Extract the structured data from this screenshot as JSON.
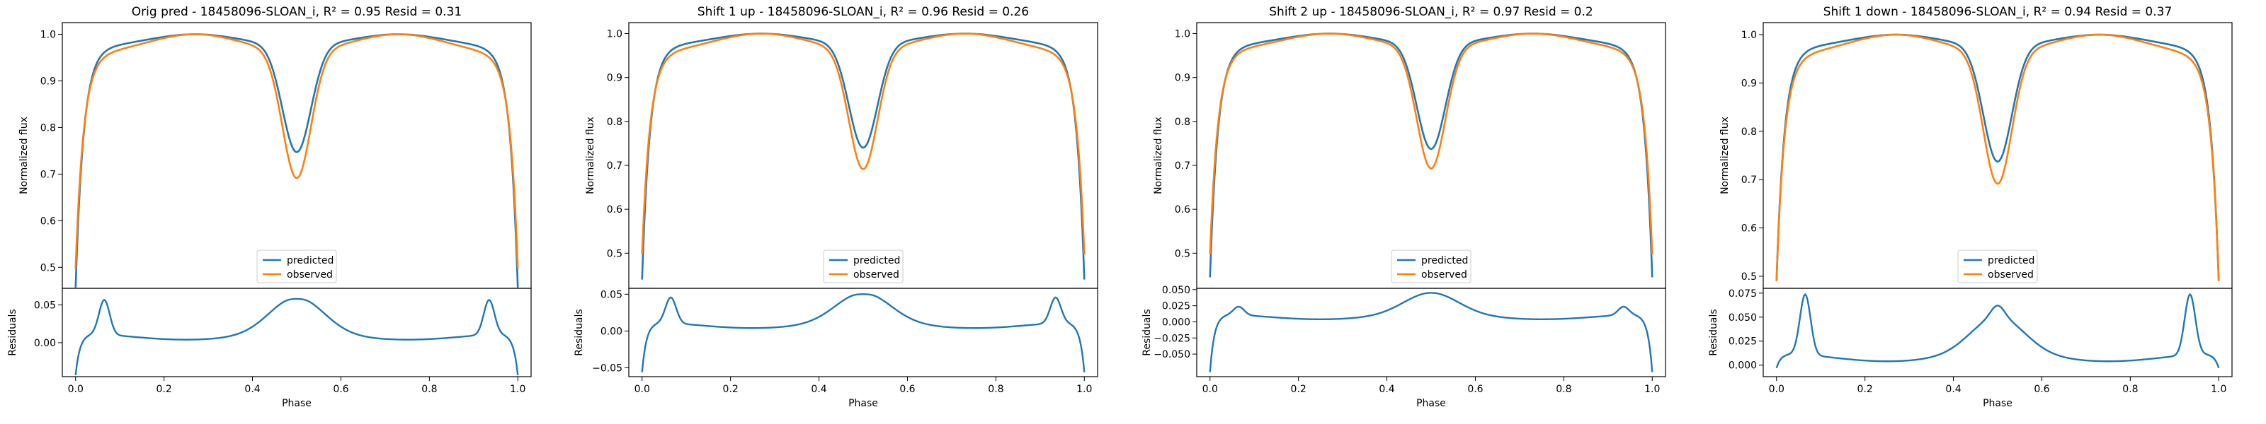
{
  "chart_data": [
    {
      "type": "line",
      "title": "Orig pred - 18458096-SLOAN_i, R² = 0.95 Resid = 0.31",
      "xlabel": "Phase",
      "ylabel_top": "Normalized flux",
      "ylabel_bottom": "Residuals",
      "xlim": [
        -0.03,
        1.03
      ],
      "xticks": [
        0.0,
        0.2,
        0.4,
        0.6,
        0.8,
        1.0
      ],
      "xtick_labels": [
        "0.0",
        "0.2",
        "0.4",
        "0.6",
        "0.8",
        "1.0"
      ],
      "top_ylim": [
        0.455,
        1.025
      ],
      "top_yticks": [
        0.5,
        0.6,
        0.7,
        0.8,
        0.9,
        1.0
      ],
      "top_ytick_labels": [
        "0.5",
        "0.6",
        "0.7",
        "0.8",
        "0.9",
        "1.0"
      ],
      "bottom_ylim": [
        -0.045,
        0.072
      ],
      "bottom_yticks": [
        0.0,
        0.05
      ],
      "bottom_ytick_labels": [
        "0.00",
        "0.05"
      ],
      "legend": {
        "entries": [
          "predicted",
          "observed"
        ],
        "placement": "lower-center"
      },
      "predicted": {
        "color": "#1f77b4",
        "eclipse_min": 0.745,
        "edge": 0.455,
        "plateau": 0.97
      },
      "observed": {
        "color": "#ff7f0e",
        "eclipse_min": 0.688,
        "edge": 0.497,
        "plateau": 0.955
      },
      "residual_params": {
        "edge_low": -0.045,
        "spike": 0.058,
        "mid": 0.06,
        "dip": 0.058
      }
    },
    {
      "type": "line",
      "title": "Shift 1 up - 18458096-SLOAN_i, R² = 0.96 Resid = 0.26",
      "xlabel": "Phase",
      "ylabel_top": "Normalized flux",
      "ylabel_bottom": "Residuals",
      "xlim": [
        -0.03,
        1.03
      ],
      "xticks": [
        0.0,
        0.2,
        0.4,
        0.6,
        0.8,
        1.0
      ],
      "xtick_labels": [
        "0.0",
        "0.2",
        "0.4",
        "0.6",
        "0.8",
        "1.0"
      ],
      "top_ylim": [
        0.42,
        1.025
      ],
      "top_yticks": [
        0.5,
        0.6,
        0.7,
        0.8,
        0.9,
        1.0
      ],
      "top_ytick_labels": [
        "0.5",
        "0.6",
        "0.7",
        "0.8",
        "0.9",
        "1.0"
      ],
      "bottom_ylim": [
        -0.062,
        0.058
      ],
      "bottom_yticks": [
        -0.05,
        0.0,
        0.05
      ],
      "bottom_ytick_labels": [
        "−0.05",
        "0.00",
        "0.05"
      ],
      "legend": {
        "entries": [
          "predicted",
          "observed"
        ],
        "placement": "lower-center"
      },
      "predicted": {
        "color": "#1f77b4",
        "eclipse_min": 0.738,
        "edge": 0.44,
        "plateau": 0.97
      },
      "observed": {
        "color": "#ff7f0e",
        "eclipse_min": 0.688,
        "edge": 0.497,
        "plateau": 0.955
      },
      "residual_params": {
        "edge_low": -0.058,
        "spike": 0.047,
        "mid": 0.052,
        "dip": 0.05
      }
    },
    {
      "type": "line",
      "title": "Shift 2 up - 18458096-SLOAN_i, R² = 0.97 Resid = 0.2",
      "xlabel": "Phase",
      "ylabel_top": "Normalized flux",
      "ylabel_bottom": "Residuals",
      "xlim": [
        -0.03,
        1.03
      ],
      "xticks": [
        0.0,
        0.2,
        0.4,
        0.6,
        0.8,
        1.0
      ],
      "xtick_labels": [
        "0.0",
        "0.2",
        "0.4",
        "0.6",
        "0.8",
        "1.0"
      ],
      "top_ylim": [
        0.42,
        1.025
      ],
      "top_yticks": [
        0.5,
        0.6,
        0.7,
        0.8,
        0.9,
        1.0
      ],
      "top_ytick_labels": [
        "0.5",
        "0.6",
        "0.7",
        "0.8",
        "0.9",
        "1.0"
      ],
      "bottom_ylim": [
        -0.085,
        0.052
      ],
      "bottom_yticks": [
        -0.05,
        -0.025,
        0.0,
        0.025,
        0.05
      ],
      "bottom_ytick_labels": [
        "−0.050",
        "−0.025",
        "0.000",
        "0.025",
        "0.050"
      ],
      "legend": {
        "entries": [
          "predicted",
          "observed"
        ],
        "placement": "lower-center"
      },
      "predicted": {
        "color": "#1f77b4",
        "eclipse_min": 0.735,
        "edge": 0.445,
        "plateau": 0.97
      },
      "observed": {
        "color": "#ff7f0e",
        "eclipse_min": 0.69,
        "edge": 0.497,
        "plateau": 0.96
      },
      "residual_params": {
        "edge_low": -0.08,
        "spike": 0.025,
        "mid": 0.045,
        "dip": 0.045
      }
    },
    {
      "type": "line",
      "title": "Shift 1 down - 18458096-SLOAN_i, R² = 0.94 Resid = 0.37",
      "xlabel": "Phase",
      "ylabel_top": "Normalized flux",
      "ylabel_bottom": "Residuals",
      "xlim": [
        -0.03,
        1.03
      ],
      "xticks": [
        0.0,
        0.2,
        0.4,
        0.6,
        0.8,
        1.0
      ],
      "xtick_labels": [
        "0.0",
        "0.2",
        "0.4",
        "0.6",
        "0.8",
        "1.0"
      ],
      "top_ylim": [
        0.475,
        1.025
      ],
      "top_yticks": [
        0.5,
        0.6,
        0.7,
        0.8,
        0.9,
        1.0
      ],
      "top_ytick_labels": [
        "0.5",
        "0.6",
        "0.7",
        "0.8",
        "0.9",
        "1.0"
      ],
      "bottom_ylim": [
        -0.012,
        0.08
      ],
      "bottom_yticks": [
        0.0,
        0.025,
        0.05,
        0.075
      ],
      "bottom_ytick_labels": [
        "0.000",
        "0.025",
        "0.050",
        "0.075"
      ],
      "legend": {
        "entries": [
          "predicted",
          "observed"
        ],
        "placement": "lower-center"
      },
      "predicted": {
        "color": "#1f77b4",
        "eclipse_min": 0.735,
        "edge": 0.49,
        "plateau": 0.97
      },
      "observed": {
        "color": "#ff7f0e",
        "eclipse_min": 0.688,
        "edge": 0.49,
        "plateau": 0.955
      },
      "residual_params": {
        "edge_low": -0.005,
        "spike": 0.075,
        "mid": 0.05,
        "dip": 0.062
      }
    }
  ]
}
